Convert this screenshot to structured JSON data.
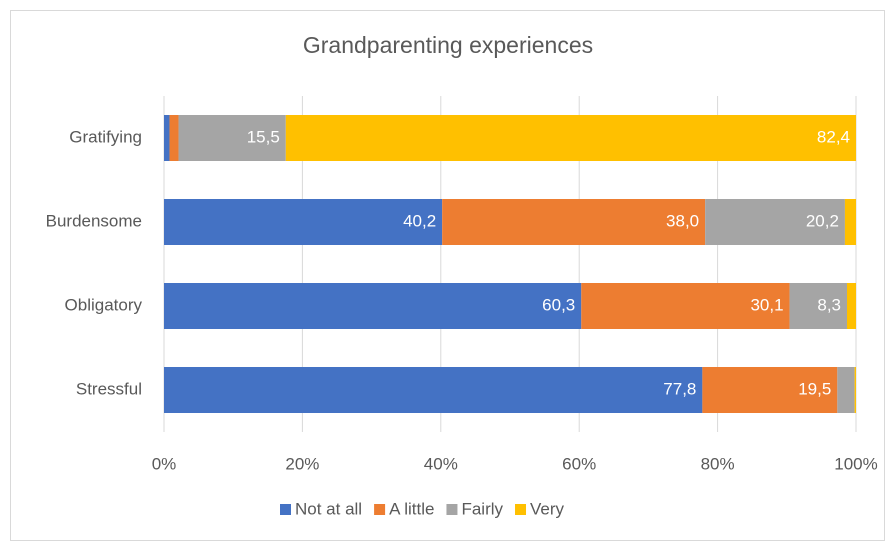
{
  "chart_data": {
    "type": "stacked-barh",
    "title": "Grandparenting experiences",
    "categories": [
      "Gratifying",
      "Burdensome",
      "Obligatory",
      "Stressful"
    ],
    "series": [
      {
        "name": "Not at all",
        "color": "#4472c4",
        "values": [
          0.8,
          40.2,
          60.3,
          77.8
        ],
        "value_labels": [
          null,
          "40,2",
          "60,3",
          "77,8"
        ]
      },
      {
        "name": "A little",
        "color": "#ed7d31",
        "values": [
          1.3,
          38.0,
          30.1,
          19.5
        ],
        "value_labels": [
          null,
          "38,0",
          "30,1",
          "19,5"
        ]
      },
      {
        "name": "Fairly",
        "color": "#a5a5a5",
        "values": [
          15.5,
          20.2,
          8.3,
          2.5
        ],
        "value_labels": [
          "15,5",
          "20,2",
          "8,3",
          null
        ]
      },
      {
        "name": "Very",
        "color": "#ffc000",
        "values": [
          82.4,
          1.6,
          1.3,
          0.2
        ],
        "value_labels": [
          "82,4",
          null,
          null,
          null
        ]
      }
    ],
    "xlim": [
      0,
      100
    ],
    "xticks": [
      {
        "value": 0,
        "label": "0%"
      },
      {
        "value": 20,
        "label": "20%"
      },
      {
        "value": 40,
        "label": "40%"
      },
      {
        "value": 60,
        "label": "60%"
      },
      {
        "value": 80,
        "label": "80%"
      },
      {
        "value": 100,
        "label": "100%"
      }
    ],
    "grid": true,
    "legend": "bottom"
  }
}
